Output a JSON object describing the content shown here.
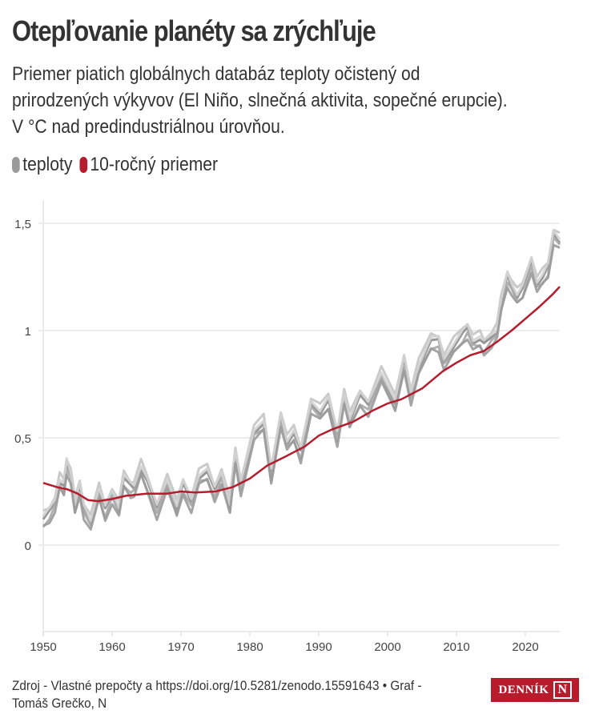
{
  "header": {
    "title": "Otepľovanie planéty sa zrýchľuje",
    "subtitle": "Priemer piatich globálnych databáz teploty očistený od prirodzených výkyvov (El Niño, slnečná aktivita, sopečné erupcie). V °C nad predindustriálnou úrovňou."
  },
  "legend": [
    {
      "label": "teploty",
      "color": "#9a9a9a"
    },
    {
      "label": "10-ročný priemer",
      "color": "#b31d2e"
    }
  ],
  "footer": {
    "source": "Zdroj - Vlastné prepočty a https://doi.org/10.5281/zenodo.15591643 • Graf - Tomáš Grečko, N",
    "logo_text": "DENNÍK",
    "logo_mark": "N"
  },
  "chart_data": {
    "type": "line",
    "title": "Otepľovanie planéty sa zrýchľuje",
    "xlabel": "",
    "ylabel": "°C nad predindustriálnou úrovňou",
    "xlim": [
      1950,
      2025
    ],
    "ylim": [
      -0.42,
      1.6
    ],
    "grid": true,
    "legend_position": "top-left",
    "x_ticks": [
      1950,
      1960,
      1970,
      1980,
      1990,
      2000,
      2010,
      2020
    ],
    "x_tick_labels": [
      "1950",
      "1960",
      "1970",
      "1980",
      "1990",
      "2000",
      "2010",
      "2020"
    ],
    "y_ticks": [
      0,
      0.5,
      1,
      1.5
    ],
    "y_tick_labels": [
      "0",
      "0,5",
      "1",
      "1,5"
    ],
    "series": [
      {
        "name": "teploty",
        "color": "#9a9a9a",
        "note": "5 overlapping databases drawn in shades of gray; values are approximate average",
        "offsets": [
          0.0,
          0.03,
          -0.025,
          0.015,
          -0.04
        ],
        "shades": [
          "#8c8c8c",
          "#c4c4c4",
          "#a8a8a8",
          "#d2d2d2",
          "#9a9a9a"
        ],
        "x": [
          1950.0,
          1950.9,
          1951.7,
          1952.4,
          1953.0,
          1953.4,
          1954.0,
          1954.6,
          1955.3,
          1955.9,
          1956.9,
          1958.1,
          1959.0,
          1960.0,
          1961.0,
          1961.7,
          1962.7,
          1963.2,
          1964.2,
          1965.1,
          1966.5,
          1968.0,
          1969.4,
          1970.3,
          1971.5,
          1972.6,
          1973.8,
          1974.9,
          1975.9,
          1977.1,
          1977.9,
          1978.7,
          1980.6,
          1982.0,
          1983.1,
          1984.5,
          1985.4,
          1986.4,
          1987.4,
          1988.9,
          1990.2,
          1991.4,
          1992.7,
          1993.7,
          1994.5,
          1996.0,
          1997.2,
          1999.1,
          2001.1,
          2002.4,
          2003.4,
          2004.5,
          2006.3,
          2007.4,
          2008.2,
          2009.6,
          2010.9,
          2011.6,
          2012.4,
          2013.4,
          2014.0,
          2015.1,
          2015.9,
          2016.5,
          2017.4,
          2018.0,
          2018.8,
          2019.6,
          2020.9,
          2021.7,
          2022.5,
          2023.3,
          2024.1,
          2025.0
        ],
        "values": [
          0.12,
          0.15,
          0.2,
          0.3,
          0.27,
          0.38,
          0.33,
          0.18,
          0.27,
          0.17,
          0.11,
          0.25,
          0.16,
          0.24,
          0.17,
          0.31,
          0.27,
          0.27,
          0.36,
          0.29,
          0.17,
          0.3,
          0.17,
          0.28,
          0.2,
          0.32,
          0.34,
          0.25,
          0.33,
          0.18,
          0.42,
          0.28,
          0.53,
          0.57,
          0.33,
          0.6,
          0.48,
          0.52,
          0.43,
          0.66,
          0.62,
          0.67,
          0.51,
          0.7,
          0.58,
          0.69,
          0.65,
          0.8,
          0.66,
          0.86,
          0.7,
          0.83,
          0.95,
          0.95,
          0.86,
          0.93,
          0.98,
          1.01,
          0.95,
          0.96,
          0.93,
          0.97,
          1.0,
          1.13,
          1.25,
          1.21,
          1.16,
          1.19,
          1.32,
          1.22,
          1.25,
          1.29,
          1.45,
          1.42
        ]
      },
      {
        "name": "10-ročný priemer",
        "color": "#b31d2e",
        "x": [
          1950,
          1952,
          1953.5,
          1955,
          1956.5,
          1958,
          1960,
          1962,
          1965,
          1968,
          1970,
          1972,
          1975,
          1977.5,
          1980,
          1982.5,
          1985,
          1988,
          1990,
          1992,
          1995,
          1998,
          2000,
          2002,
          2005,
          2008,
          2010,
          2012,
          2014,
          2016,
          2018,
          2020,
          2022,
          2024,
          2025
        ],
        "values": [
          0.29,
          0.27,
          0.26,
          0.24,
          0.21,
          0.205,
          0.215,
          0.23,
          0.24,
          0.24,
          0.25,
          0.245,
          0.25,
          0.27,
          0.31,
          0.37,
          0.41,
          0.46,
          0.51,
          0.54,
          0.575,
          0.63,
          0.66,
          0.68,
          0.73,
          0.81,
          0.85,
          0.885,
          0.905,
          0.95,
          1.0,
          1.055,
          1.11,
          1.17,
          1.205
        ]
      }
    ]
  }
}
